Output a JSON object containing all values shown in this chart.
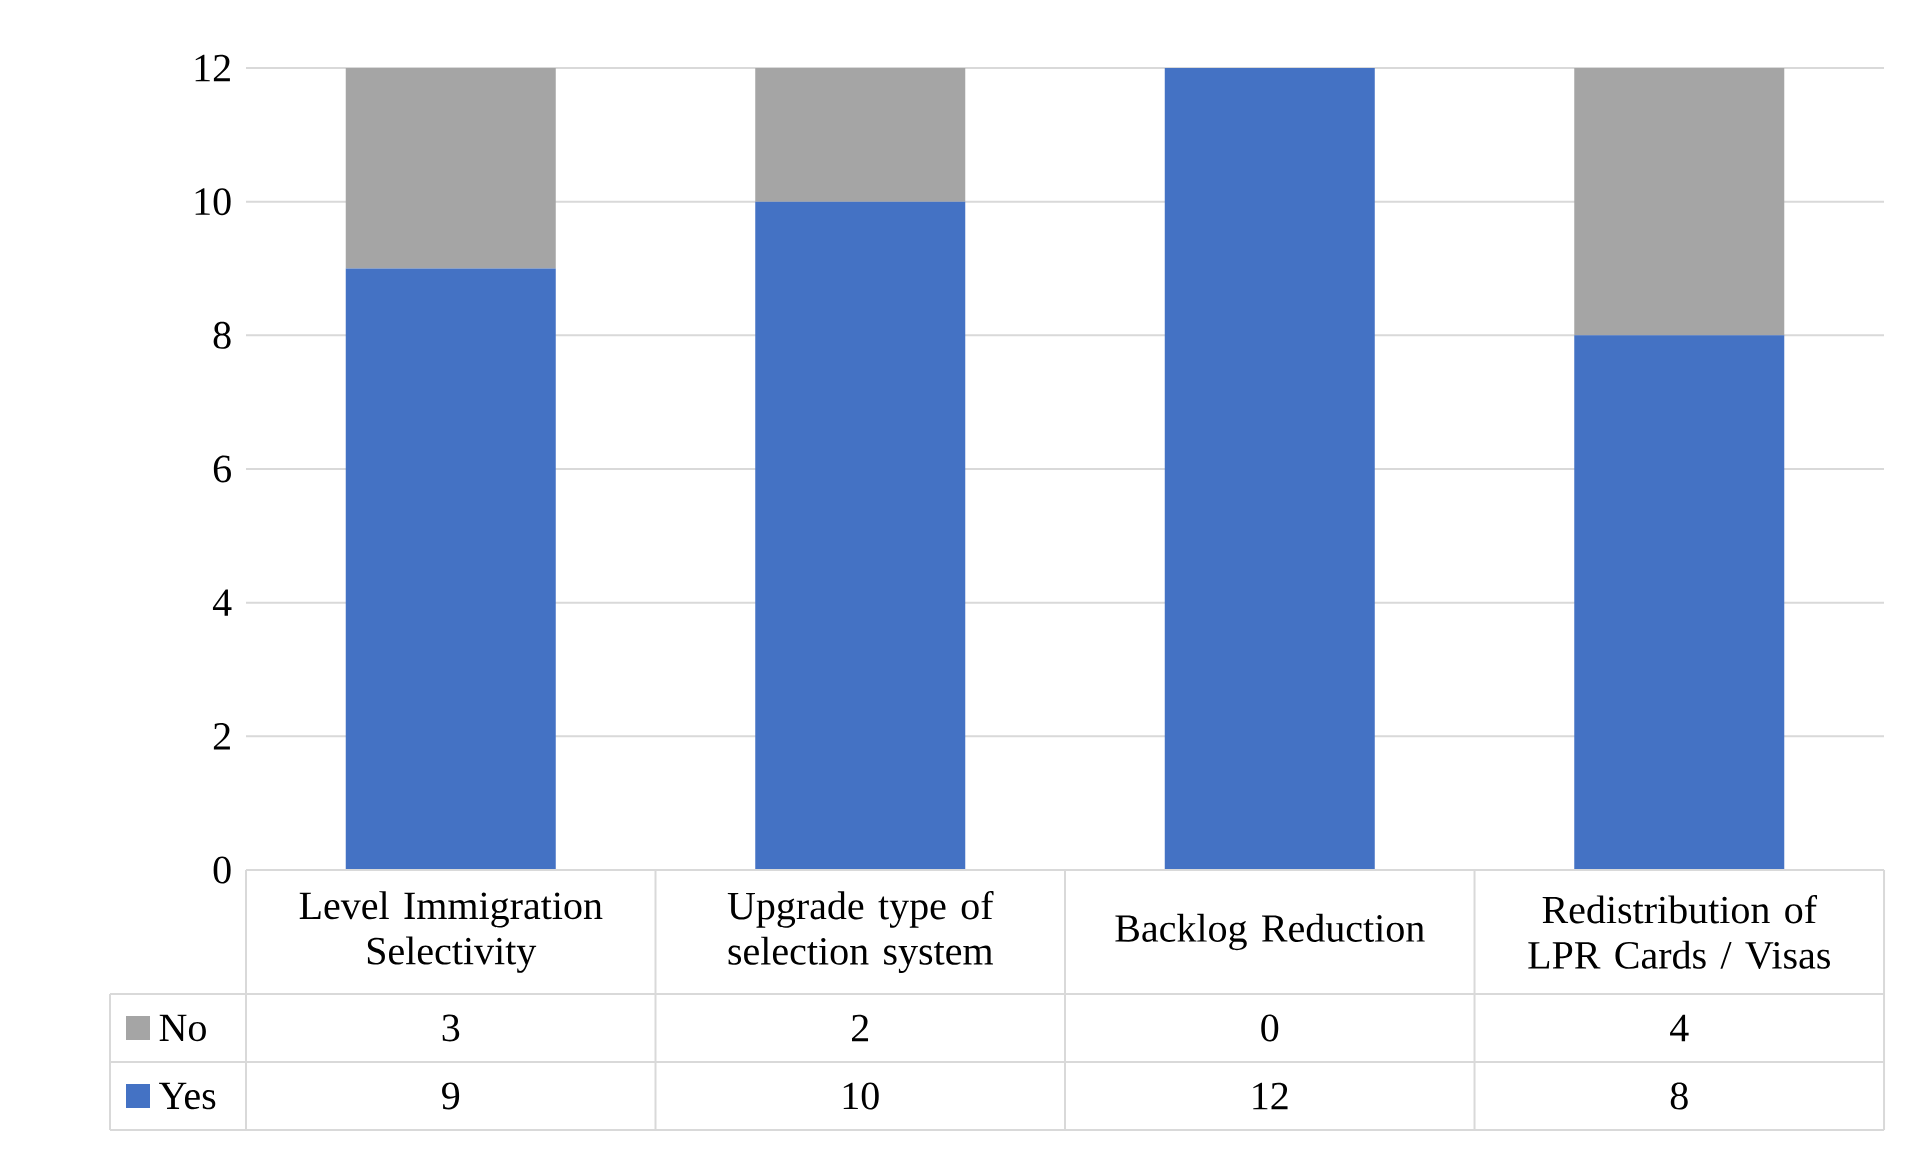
{
  "chart_data": {
    "type": "bar",
    "stacked": true,
    "categories": [
      "Level Immigration Selectivity",
      "Upgrade type of selection system",
      "Backlog Reduction",
      "Redistribution of LPR Cards / Visas"
    ],
    "series": [
      {
        "name": "Yes",
        "color": "#4472c4",
        "values": [
          9,
          10,
          12,
          8
        ]
      },
      {
        "name": "No",
        "color": "#a5a5a5",
        "values": [
          3,
          2,
          0,
          4
        ]
      }
    ],
    "ylim": [
      0,
      12
    ],
    "yticks": [
      0,
      2,
      4,
      6,
      8,
      10,
      12
    ],
    "grid": "y",
    "legend": "bottom",
    "data_labels": true
  }
}
